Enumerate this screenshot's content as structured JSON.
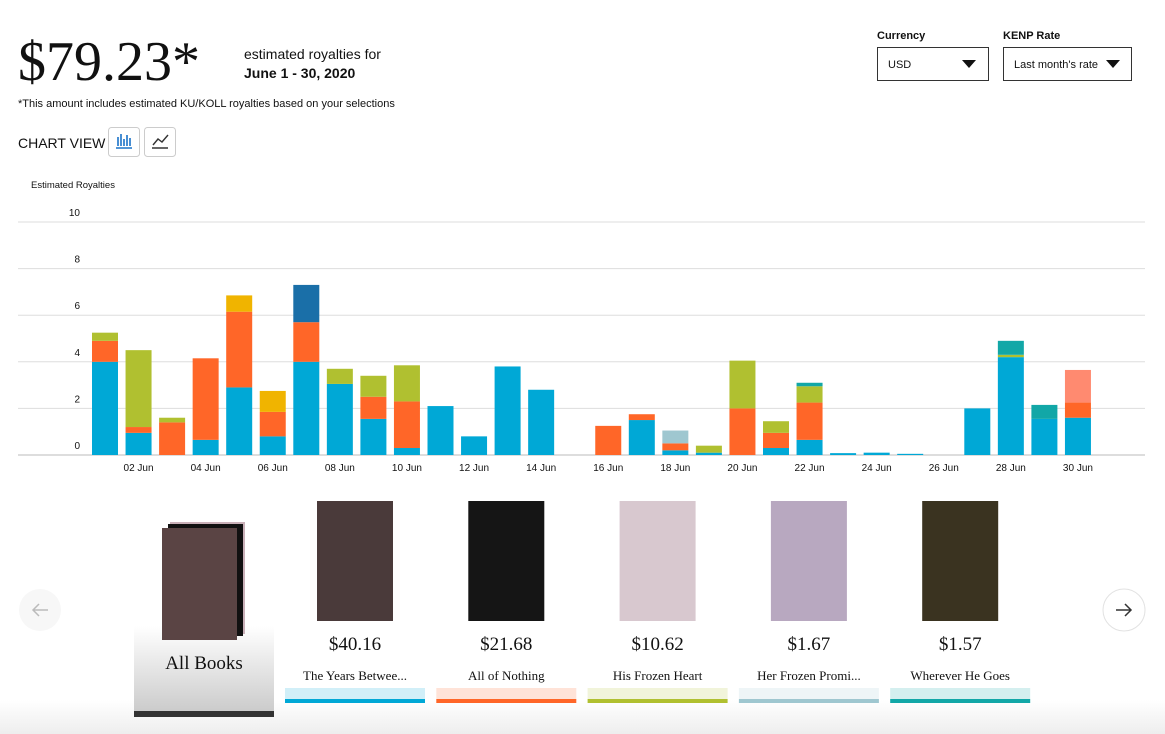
{
  "header": {
    "amount": "$79.23*",
    "label": "estimated royalties for",
    "period": "June 1 - 30, 2020",
    "note": "*This amount includes estimated KU/KOLL royalties based on your selections"
  },
  "controls": {
    "currency_label": "Currency",
    "currency": "USD",
    "kenp_label": "KENP Rate",
    "kenp": "Last month's rate",
    "chart_view": "CHART VIEW"
  },
  "chart_data": {
    "type": "stacked-bar",
    "y_label": "Estimated Royalties",
    "categories": [
      null,
      "02 Jun",
      null,
      "04 Jun",
      null,
      "06 Jun",
      null,
      "08 Jun",
      null,
      "10 Jun",
      null,
      "12 Jun",
      null,
      "14 Jun",
      null,
      "16 Jun",
      null,
      "18 Jun",
      null,
      "20 Jun",
      null,
      "22 Jun",
      null,
      "24 Jun",
      null,
      "26 Jun",
      null,
      "28 Jun",
      null,
      "30 Jun"
    ],
    "ylim": [
      0,
      10
    ],
    "yticks": [
      0,
      2,
      4,
      6,
      8,
      10
    ],
    "grid": true,
    "series": [
      {
        "color": "#00a8d6",
        "values": [
          4.0,
          0.95,
          0,
          0.65,
          2.9,
          0.8,
          4.0,
          3.05,
          1.55,
          0.3,
          2.1,
          0.8,
          3.8,
          2.8,
          0,
          0,
          1.5,
          0.2,
          0.1,
          0,
          0.3,
          0.65,
          0.08,
          0.1,
          0.05,
          0,
          2.0,
          4.2,
          1.55,
          1.6
        ]
      },
      {
        "color": "#ff6628",
        "values": [
          0.9,
          0.25,
          1.4,
          3.5,
          3.25,
          1.05,
          1.7,
          0,
          0.95,
          2.0,
          0,
          0,
          0,
          0,
          0,
          1.25,
          0.25,
          0.3,
          0,
          2.0,
          0.65,
          1.6,
          0,
          0,
          0,
          0,
          0,
          0,
          0,
          0.65
        ]
      },
      {
        "color": "#b0c030",
        "values": [
          0.35,
          3.3,
          0.2,
          0,
          0,
          0,
          0,
          0.65,
          0.9,
          1.55,
          0,
          0,
          0,
          0,
          0,
          0,
          0,
          0,
          0.3,
          2.05,
          0.5,
          0.7,
          0,
          0,
          0,
          0,
          0,
          0.1,
          0,
          0
        ]
      },
      {
        "color": "#9fc7d0",
        "values": [
          0,
          0,
          0,
          0,
          0,
          0,
          0,
          0,
          0,
          0,
          0,
          0,
          0,
          0,
          0,
          0,
          0,
          0.55,
          0,
          0,
          0,
          0,
          0,
          0,
          0,
          0,
          0,
          0,
          0,
          0
        ]
      },
      {
        "color": "#12a7a7",
        "values": [
          0,
          0,
          0,
          0,
          0,
          0,
          0,
          0,
          0,
          0,
          0,
          0,
          0,
          0,
          0,
          0,
          0,
          0,
          0,
          0,
          0,
          0.15,
          0,
          0,
          0,
          0,
          0,
          0.6,
          0.6,
          0
        ]
      },
      {
        "color": "#1a6fa8",
        "values": [
          0,
          0,
          0,
          0,
          0,
          0,
          1.6,
          0,
          0,
          0,
          0,
          0,
          0,
          0,
          0,
          0,
          0,
          0,
          0,
          0,
          0,
          0,
          0,
          0,
          0,
          0,
          0,
          0,
          0,
          0
        ]
      },
      {
        "color": "#f0b400",
        "values": [
          0,
          0,
          0,
          0,
          0.7,
          0.9,
          0,
          0,
          0,
          0,
          0,
          0,
          0,
          0,
          0,
          0,
          0,
          0,
          0,
          0,
          0,
          0,
          0,
          0,
          0,
          0,
          0,
          0,
          0,
          0
        ]
      },
      {
        "color": "#ff8a70",
        "values": [
          0,
          0,
          0,
          0,
          0,
          0,
          0,
          0,
          0,
          0,
          0,
          0,
          0,
          0,
          0,
          0,
          0,
          0,
          0,
          0,
          0,
          0,
          0,
          0,
          0,
          0,
          0,
          0,
          0,
          1.4
        ]
      }
    ]
  },
  "cards": [
    {
      "title": "All Books"
    },
    {
      "price": "$40.16",
      "title": "The Years Betwee..."
    },
    {
      "price": "$21.68",
      "title": "All of Nothing"
    },
    {
      "price": "$10.62",
      "title": "His Frozen Heart"
    },
    {
      "price": "$1.67",
      "title": "Her Frozen Promi..."
    },
    {
      "price": "$1.57",
      "title": "Wherever He Goes"
    }
  ]
}
